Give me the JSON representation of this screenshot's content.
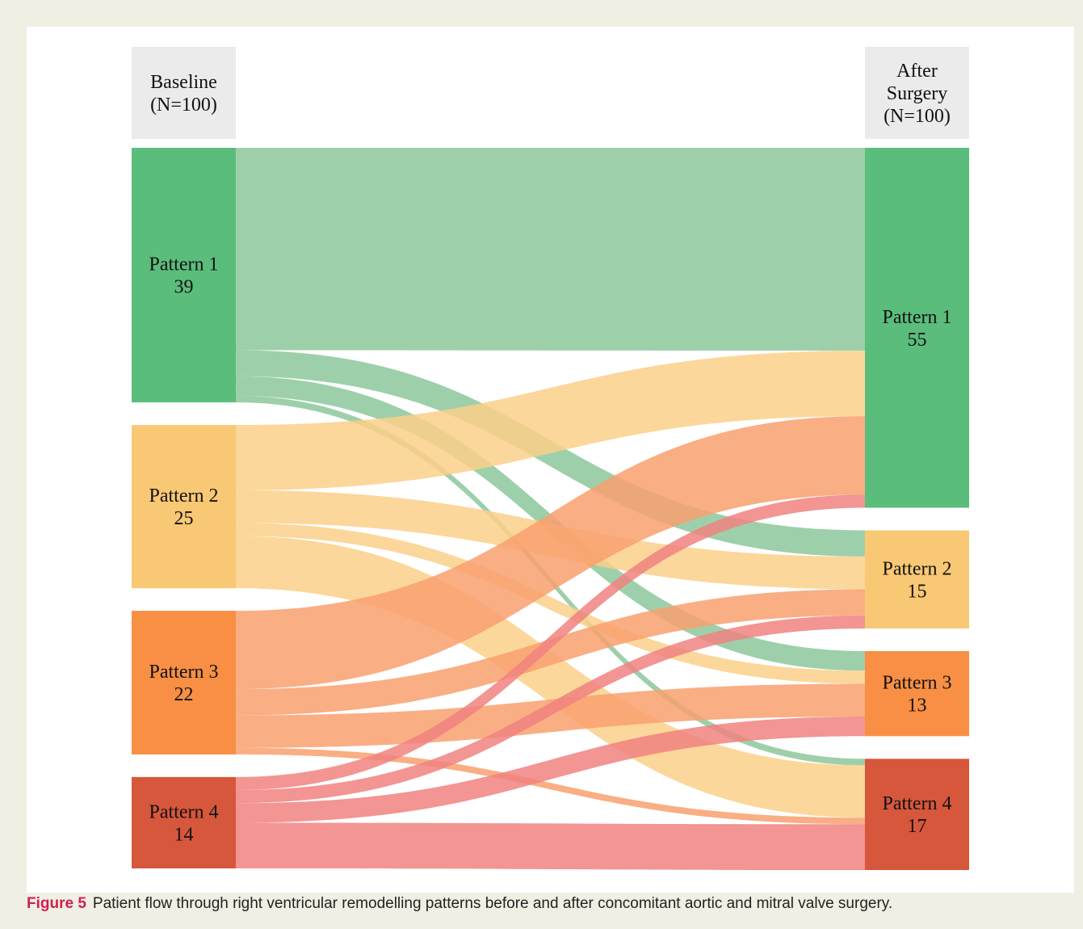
{
  "chart_data": {
    "type": "sankey",
    "columns": [
      {
        "header": [
          "Baseline",
          "(N=100)"
        ],
        "side": "left"
      },
      {
        "header": [
          "After",
          "Surgery",
          "(N=100)"
        ],
        "side": "right"
      }
    ],
    "nodes_left": [
      {
        "name": "Pattern 1",
        "value": 39,
        "color": "#5bbd7c"
      },
      {
        "name": "Pattern 2",
        "value": 25,
        "color": "#f9c874"
      },
      {
        "name": "Pattern 3",
        "value": 22,
        "color": "#f88f44"
      },
      {
        "name": "Pattern 4",
        "value": 14,
        "color": "#d6573c"
      }
    ],
    "nodes_right": [
      {
        "name": "Pattern 1",
        "value": 55,
        "color": "#5bbd7c"
      },
      {
        "name": "Pattern 2",
        "value": 15,
        "color": "#f9c874"
      },
      {
        "name": "Pattern 3",
        "value": 13,
        "color": "#f88f44"
      },
      {
        "name": "Pattern 4",
        "value": 17,
        "color": "#d6573c"
      }
    ],
    "link_colors": [
      "#8cc89b",
      "#fbd08a",
      "#f9a06e",
      "#f08380"
    ],
    "links": [
      {
        "source": 0,
        "target": 0,
        "value": 31
      },
      {
        "source": 0,
        "target": 1,
        "value": 4
      },
      {
        "source": 0,
        "target": 2,
        "value": 3
      },
      {
        "source": 0,
        "target": 3,
        "value": 1
      },
      {
        "source": 1,
        "target": 0,
        "value": 10
      },
      {
        "source": 1,
        "target": 1,
        "value": 5
      },
      {
        "source": 1,
        "target": 2,
        "value": 2
      },
      {
        "source": 1,
        "target": 3,
        "value": 8
      },
      {
        "source": 2,
        "target": 0,
        "value": 12
      },
      {
        "source": 2,
        "target": 1,
        "value": 4
      },
      {
        "source": 2,
        "target": 2,
        "value": 5
      },
      {
        "source": 2,
        "target": 3,
        "value": 1
      },
      {
        "source": 3,
        "target": 0,
        "value": 2
      },
      {
        "source": 3,
        "target": 1,
        "value": 2
      },
      {
        "source": 3,
        "target": 2,
        "value": 3
      },
      {
        "source": 3,
        "target": 3,
        "value": 7
      }
    ]
  },
  "caption": {
    "label": "Figure 5",
    "text": "Patient flow through right ventricular remodelling patterns before and after concomitant aortic and mitral valve surgery."
  }
}
